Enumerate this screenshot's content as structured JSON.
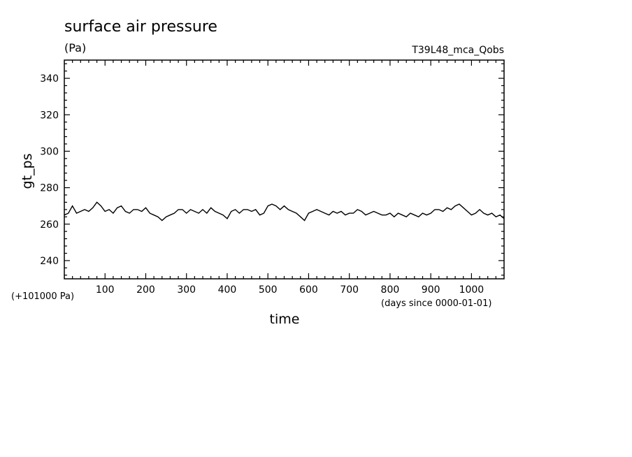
{
  "chart_data": {
    "type": "line",
    "title": "surface air pressure",
    "units": "(Pa)",
    "run_name": "T39L48_mca_Qobs",
    "ylabel": "gt_ps",
    "xlabel": "time",
    "y_offset_note": "(+101000 Pa)",
    "x_units_note": "(days since 0000-01-01)",
    "xlim": [
      0,
      1080
    ],
    "ylim": [
      230,
      350
    ],
    "x_ticks": [
      100,
      200,
      300,
      400,
      500,
      600,
      700,
      800,
      900,
      1000
    ],
    "y_ticks": [
      240,
      260,
      280,
      300,
      320,
      340
    ],
    "grid": false,
    "series": [
      {
        "color": "#000000",
        "x": [
          0,
          10,
          20,
          30,
          40,
          50,
          60,
          70,
          80,
          90,
          100,
          110,
          120,
          130,
          140,
          150,
          160,
          170,
          180,
          190,
          200,
          210,
          220,
          230,
          240,
          250,
          260,
          270,
          280,
          290,
          300,
          310,
          320,
          330,
          340,
          350,
          360,
          370,
          380,
          390,
          400,
          410,
          420,
          430,
          440,
          450,
          460,
          470,
          480,
          490,
          500,
          510,
          520,
          530,
          540,
          550,
          560,
          570,
          580,
          590,
          600,
          610,
          620,
          630,
          640,
          650,
          660,
          670,
          680,
          690,
          700,
          710,
          720,
          730,
          740,
          750,
          760,
          770,
          780,
          790,
          800,
          810,
          820,
          830,
          840,
          850,
          860,
          870,
          880,
          890,
          900,
          910,
          920,
          930,
          940,
          950,
          960,
          970,
          980,
          990,
          1000,
          1010,
          1020,
          1030,
          1040,
          1050,
          1060,
          1070,
          1080
        ],
        "y": [
          265,
          266,
          270,
          266,
          267,
          268,
          267,
          269,
          272,
          270,
          267,
          268,
          266,
          269,
          270,
          267,
          266,
          268,
          268,
          267,
          269,
          266,
          265,
          264,
          262,
          264,
          265,
          266,
          268,
          268,
          266,
          268,
          267,
          266,
          268,
          266,
          269,
          267,
          266,
          265,
          263,
          267,
          268,
          266,
          268,
          268,
          267,
          268,
          265,
          266,
          270,
          271,
          270,
          268,
          270,
          268,
          267,
          266,
          264,
          262,
          266,
          267,
          268,
          267,
          266,
          265,
          267,
          266,
          267,
          265,
          266,
          266,
          268,
          267,
          265,
          266,
          267,
          266,
          265,
          265,
          266,
          264,
          266,
          265,
          264,
          266,
          265,
          264,
          266,
          265,
          266,
          268,
          268,
          267,
          269,
          268,
          270,
          271,
          269,
          267,
          265,
          266,
          268,
          266,
          265,
          266,
          264,
          265,
          263
        ]
      }
    ]
  }
}
